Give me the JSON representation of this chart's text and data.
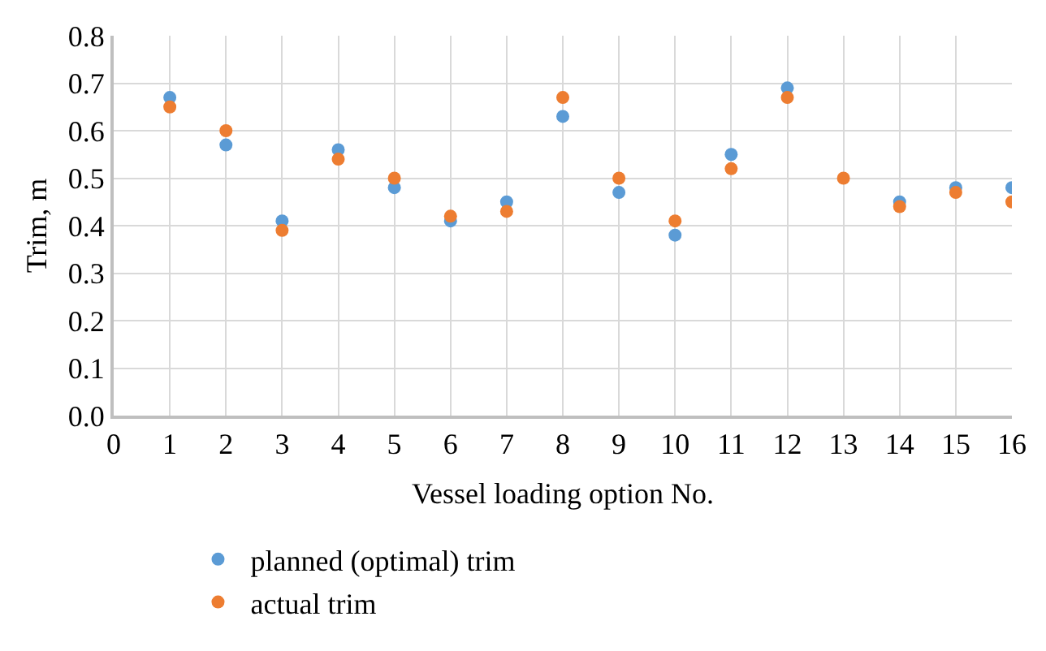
{
  "chart_data": {
    "type": "scatter",
    "xlabel": "Vessel loading option No.",
    "ylabel": "Trim, m",
    "x": [
      1,
      2,
      3,
      4,
      5,
      6,
      7,
      8,
      9,
      10,
      11,
      12,
      13,
      14,
      15,
      16
    ],
    "series": [
      {
        "name": "planned (optimal) trim",
        "color": "#5b9bd5",
        "values": [
          0.67,
          0.57,
          0.41,
          0.56,
          0.48,
          0.41,
          0.45,
          0.63,
          0.47,
          0.38,
          0.55,
          0.69,
          null,
          0.45,
          0.48,
          0.48
        ]
      },
      {
        "name": "actual trim",
        "color": "#ed7d31",
        "values": [
          0.65,
          0.6,
          0.39,
          0.54,
          0.5,
          0.42,
          0.43,
          0.67,
          0.5,
          0.41,
          0.52,
          0.67,
          0.5,
          0.44,
          0.47,
          0.45
        ]
      }
    ],
    "xlim": [
      0,
      16
    ],
    "xticks": [
      0,
      1,
      2,
      3,
      4,
      5,
      6,
      7,
      8,
      9,
      10,
      11,
      12,
      13,
      14,
      15,
      16
    ],
    "ylim": [
      0,
      0.8
    ],
    "yticks": [
      {
        "value": 0,
        "label": "0.0"
      },
      {
        "value": 0.1,
        "label": "0.1"
      },
      {
        "value": 0.2,
        "label": "0.2"
      },
      {
        "value": 0.3,
        "label": "0.3"
      },
      {
        "value": 0.4,
        "label": "0.4"
      },
      {
        "value": 0.5,
        "label": "0.5"
      },
      {
        "value": 0.6,
        "label": "0.6"
      },
      {
        "value": 0.7,
        "label": "0.7"
      },
      {
        "value": 0.8,
        "label": "0.8"
      }
    ],
    "grid": true,
    "legend": "bottom",
    "marker": "circle"
  }
}
